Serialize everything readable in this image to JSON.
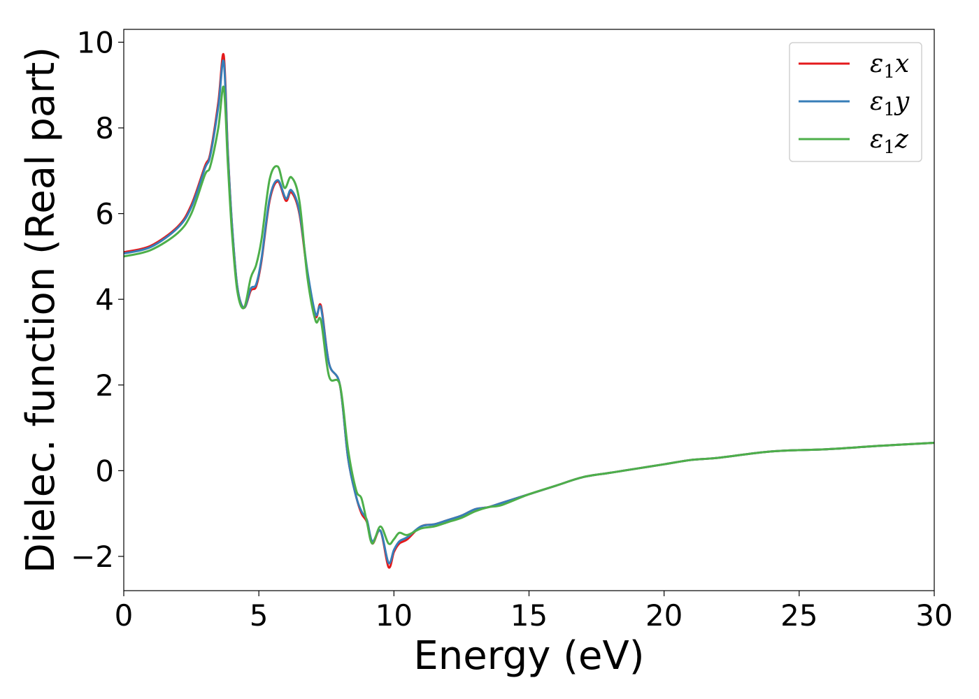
{
  "chart_data": {
    "type": "line",
    "title": "",
    "xlabel": "Energy (eV)",
    "ylabel": "Dielec. function (Real part)",
    "xlim": [
      0,
      30
    ],
    "ylim": [
      -2.8,
      10.3
    ],
    "xticks": [
      0,
      5,
      10,
      15,
      20,
      25,
      30
    ],
    "yticks": [
      -2,
      0,
      2,
      4,
      6,
      8,
      10
    ],
    "ytick_labels": [
      "−2",
      "0",
      "2",
      "4",
      "6",
      "8",
      "10"
    ],
    "grid": false,
    "legend_position": "top-right",
    "series": [
      {
        "name": "x",
        "legend_base": "ε",
        "legend_sub": "1",
        "color": "#e41a1c",
        "x": [
          0,
          1,
          2,
          2.5,
          3,
          3.2,
          3.5,
          3.7,
          3.85,
          4.0,
          4.2,
          4.45,
          4.7,
          4.9,
          5.1,
          5.4,
          5.7,
          6.0,
          6.2,
          6.5,
          6.8,
          7.1,
          7.3,
          7.6,
          8.0,
          8.3,
          8.6,
          8.8,
          9.0,
          9.2,
          9.5,
          9.8,
          10.0,
          10.2,
          10.5,
          11.0,
          11.5,
          12.0,
          12.5,
          13.0,
          13.5,
          14.0,
          15.0,
          16.0,
          17.0,
          18.0,
          19.0,
          20.0,
          21.0,
          22.0,
          24.0,
          26.0,
          28.0,
          30.0
        ],
        "values": [
          5.1,
          5.25,
          5.7,
          6.2,
          7.1,
          7.4,
          8.6,
          9.7,
          7.5,
          5.8,
          4.3,
          3.8,
          4.2,
          4.3,
          4.9,
          6.3,
          6.75,
          6.3,
          6.5,
          6.0,
          4.6,
          3.6,
          3.85,
          2.5,
          2.0,
          0.3,
          -0.6,
          -1.0,
          -1.2,
          -1.7,
          -1.4,
          -2.25,
          -1.9,
          -1.7,
          -1.6,
          -1.3,
          -1.25,
          -1.15,
          -1.05,
          -0.9,
          -0.85,
          -0.75,
          -0.55,
          -0.35,
          -0.15,
          -0.05,
          0.05,
          0.15,
          0.25,
          0.3,
          0.45,
          0.5,
          0.58,
          0.65
        ]
      },
      {
        "name": "y",
        "legend_base": "ε",
        "legend_sub": "1",
        "color": "#377eb8",
        "x": [
          0,
          1,
          2,
          2.5,
          3,
          3.2,
          3.5,
          3.7,
          3.85,
          4.0,
          4.2,
          4.45,
          4.7,
          4.9,
          5.1,
          5.4,
          5.7,
          6.0,
          6.2,
          6.5,
          6.8,
          7.1,
          7.3,
          7.6,
          8.0,
          8.3,
          8.6,
          8.8,
          9.0,
          9.2,
          9.5,
          9.8,
          10.0,
          10.2,
          10.5,
          11.0,
          11.5,
          12.0,
          12.5,
          13.0,
          13.5,
          14.0,
          15.0,
          16.0,
          17.0,
          18.0,
          19.0,
          20.0,
          21.0,
          22.0,
          24.0,
          26.0,
          28.0,
          30.0
        ],
        "values": [
          5.07,
          5.22,
          5.67,
          6.15,
          7.05,
          7.35,
          8.5,
          9.55,
          7.45,
          5.8,
          4.3,
          3.8,
          4.25,
          4.35,
          4.95,
          6.35,
          6.78,
          6.35,
          6.55,
          6.05,
          4.65,
          3.65,
          3.8,
          2.5,
          2.0,
          0.3,
          -0.6,
          -0.95,
          -1.15,
          -1.65,
          -1.4,
          -2.15,
          -1.85,
          -1.65,
          -1.55,
          -1.3,
          -1.25,
          -1.15,
          -1.05,
          -0.9,
          -0.85,
          -0.75,
          -0.55,
          -0.35,
          -0.15,
          -0.05,
          0.05,
          0.15,
          0.25,
          0.3,
          0.45,
          0.5,
          0.58,
          0.65
        ]
      },
      {
        "name": "z",
        "legend_base": "ε",
        "legend_sub": "1",
        "color": "#4daf4a",
        "x": [
          0,
          1,
          2,
          2.5,
          3,
          3.2,
          3.5,
          3.7,
          3.85,
          4.0,
          4.2,
          4.45,
          4.7,
          4.9,
          5.1,
          5.4,
          5.7,
          5.95,
          6.2,
          6.5,
          6.8,
          7.1,
          7.3,
          7.6,
          8.0,
          8.3,
          8.6,
          8.8,
          9.0,
          9.2,
          9.5,
          9.8,
          10.0,
          10.2,
          10.5,
          11.0,
          11.5,
          12.0,
          12.5,
          13.0,
          13.5,
          14.0,
          15.0,
          16.0,
          17.0,
          18.0,
          19.0,
          20.0,
          21.0,
          22.0,
          24.0,
          26.0,
          28.0,
          30.0
        ],
        "values": [
          5.0,
          5.15,
          5.55,
          6.0,
          6.9,
          7.1,
          8.0,
          8.95,
          7.2,
          5.6,
          4.2,
          3.8,
          4.5,
          4.8,
          5.4,
          6.8,
          7.1,
          6.6,
          6.85,
          6.3,
          4.5,
          3.5,
          3.5,
          2.2,
          2.0,
          0.5,
          -0.45,
          -0.65,
          -1.2,
          -1.7,
          -1.3,
          -1.7,
          -1.6,
          -1.45,
          -1.5,
          -1.35,
          -1.3,
          -1.2,
          -1.1,
          -0.95,
          -0.85,
          -0.8,
          -0.55,
          -0.35,
          -0.15,
          -0.05,
          0.05,
          0.15,
          0.25,
          0.3,
          0.45,
          0.5,
          0.58,
          0.65
        ]
      }
    ]
  }
}
